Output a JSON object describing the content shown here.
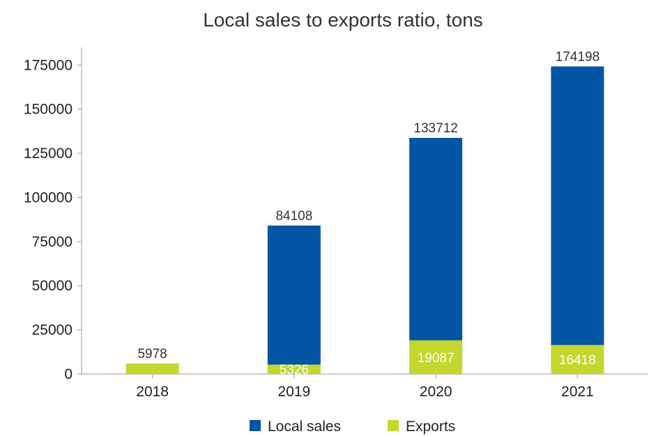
{
  "chart_data": {
    "type": "bar",
    "stacked": true,
    "title": "Local sales to exports ratio, tons",
    "xlabel": "",
    "ylabel": "",
    "categories": [
      "2018",
      "2019",
      "2020",
      "2021"
    ],
    "series": [
      {
        "name": "Exports",
        "color": "#c3d72e",
        "values": [
          5978,
          5326,
          19087,
          16418
        ]
      },
      {
        "name": "Local sales",
        "color": "#0255a5",
        "values": [
          0,
          78782,
          114625,
          157780
        ]
      }
    ],
    "total_labels": [
      "5978",
      "84108",
      "133712",
      "174198"
    ],
    "exports_labels": [
      "",
      "5326",
      "19087",
      "16418"
    ],
    "ylim": [
      0,
      185000
    ],
    "yticks": [
      "0",
      "25000",
      "50000",
      "75000",
      "100000",
      "125000",
      "150000",
      "175000"
    ],
    "ytick_values": [
      0,
      25000,
      50000,
      75000,
      100000,
      125000,
      150000,
      175000
    ],
    "grid": false,
    "legend_position": "bottom",
    "legend": [
      {
        "name": "Local sales",
        "color": "#0255a5"
      },
      {
        "name": "Exports",
        "color": "#c3d72e"
      }
    ]
  }
}
